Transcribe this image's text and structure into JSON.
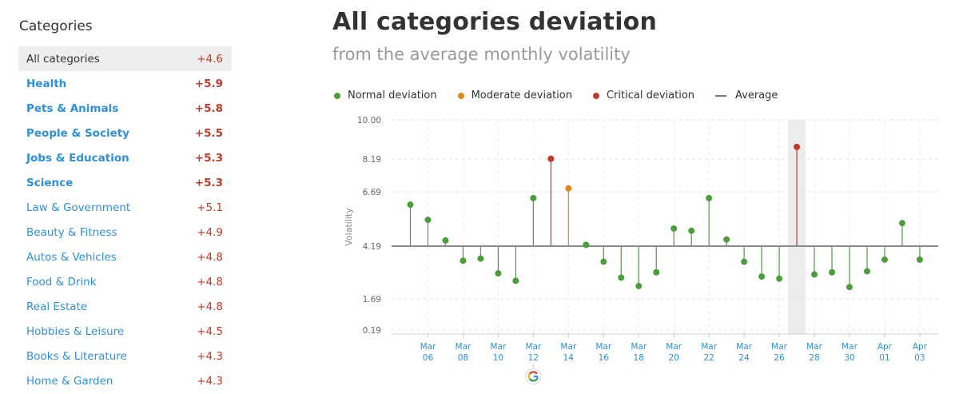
{
  "sidebar": {
    "title": "Categories",
    "items": [
      {
        "label": "All categories",
        "value": "+4.6",
        "selected": true,
        "bold": false
      },
      {
        "label": "Health",
        "value": "+5.9",
        "selected": false,
        "bold": true
      },
      {
        "label": "Pets & Animals",
        "value": "+5.8",
        "selected": false,
        "bold": true
      },
      {
        "label": "People & Society",
        "value": "+5.5",
        "selected": false,
        "bold": true
      },
      {
        "label": "Jobs & Education",
        "value": "+5.3",
        "selected": false,
        "bold": true
      },
      {
        "label": "Science",
        "value": "+5.3",
        "selected": false,
        "bold": true
      },
      {
        "label": "Law & Government",
        "value": "+5.1",
        "selected": false,
        "bold": false
      },
      {
        "label": "Beauty & Fitness",
        "value": "+4.9",
        "selected": false,
        "bold": false
      },
      {
        "label": "Autos & Vehicles",
        "value": "+4.8",
        "selected": false,
        "bold": false
      },
      {
        "label": "Food & Drink",
        "value": "+4.8",
        "selected": false,
        "bold": false
      },
      {
        "label": "Real Estate",
        "value": "+4.8",
        "selected": false,
        "bold": false
      },
      {
        "label": "Hobbies & Leisure",
        "value": "+4.5",
        "selected": false,
        "bold": false
      },
      {
        "label": "Books & Literature",
        "value": "+4.3",
        "selected": false,
        "bold": false
      },
      {
        "label": "Home & Garden",
        "value": "+4.3",
        "selected": false,
        "bold": false
      }
    ]
  },
  "main": {
    "title": "All categories deviation",
    "subtitle": "from the average monthly volatility"
  },
  "legend": [
    {
      "label": "Normal deviation",
      "color": "#4c9b3c",
      "shape": "dot"
    },
    {
      "label": "Moderate deviation",
      "color": "#e0861e",
      "shape": "dot"
    },
    {
      "label": "Critical deviation",
      "color": "#c0392b",
      "shape": "dot"
    },
    {
      "label": "Average",
      "color": "#777777",
      "shape": "line"
    }
  ],
  "colors": {
    "normal": "#4c9b3c",
    "moderate": "#e0861e",
    "critical": "#c0392b",
    "average": "#8a8a8a",
    "link": "#2f8fd8"
  },
  "chart_data": {
    "type": "scatter",
    "ylabel": "Volatility",
    "average": 4.19,
    "y_ticks": [
      "10.00",
      "8.19",
      "6.69",
      "4.19",
      "1.69",
      "0.19"
    ],
    "x_ticks": [
      {
        "top": "Mar",
        "bottom": "06"
      },
      {
        "top": "Mar",
        "bottom": "08"
      },
      {
        "top": "Mar",
        "bottom": "10"
      },
      {
        "top": "Mar",
        "bottom": "12"
      },
      {
        "top": "Mar",
        "bottom": "14"
      },
      {
        "top": "Mar",
        "bottom": "16"
      },
      {
        "top": "Mar",
        "bottom": "18"
      },
      {
        "top": "Mar",
        "bottom": "20"
      },
      {
        "top": "Mar",
        "bottom": "22"
      },
      {
        "top": "Mar",
        "bottom": "24"
      },
      {
        "top": "Mar",
        "bottom": "26"
      },
      {
        "top": "Mar",
        "bottom": "28"
      },
      {
        "top": "Mar",
        "bottom": "30"
      },
      {
        "top": "Apr",
        "bottom": "01"
      },
      {
        "top": "Apr",
        "bottom": "03"
      }
    ],
    "highlighted_date": "Mar 27",
    "annotation_icon": "google-icon",
    "annotation_date": "Mar 12",
    "x": [
      "Mar 05",
      "Mar 06",
      "Mar 07",
      "Mar 08",
      "Mar 09",
      "Mar 10",
      "Mar 11",
      "Mar 12",
      "Mar 13",
      "Mar 14",
      "Mar 15",
      "Mar 16",
      "Mar 17",
      "Mar 18",
      "Mar 19",
      "Mar 20",
      "Mar 21",
      "Mar 22",
      "Mar 23",
      "Mar 24",
      "Mar 25",
      "Mar 26",
      "Mar 27",
      "Mar 28",
      "Mar 29",
      "Mar 30",
      "Mar 31",
      "Apr 01",
      "Apr 02",
      "Apr 03"
    ],
    "values": [
      6.1,
      5.4,
      4.45,
      3.5,
      3.6,
      2.9,
      2.55,
      6.4,
      8.2,
      6.85,
      4.25,
      3.45,
      2.7,
      2.3,
      2.95,
      5.0,
      4.9,
      6.4,
      4.5,
      3.45,
      2.75,
      2.65,
      8.75,
      2.85,
      2.95,
      2.25,
      3.0,
      3.55,
      5.25,
      3.55
    ],
    "levels": [
      "normal",
      "normal",
      "normal",
      "normal",
      "normal",
      "normal",
      "normal",
      "normal",
      "critical",
      "moderate",
      "normal",
      "normal",
      "normal",
      "normal",
      "normal",
      "normal",
      "normal",
      "normal",
      "normal",
      "normal",
      "normal",
      "normal",
      "critical",
      "normal",
      "normal",
      "normal",
      "normal",
      "normal",
      "normal",
      "normal"
    ]
  }
}
